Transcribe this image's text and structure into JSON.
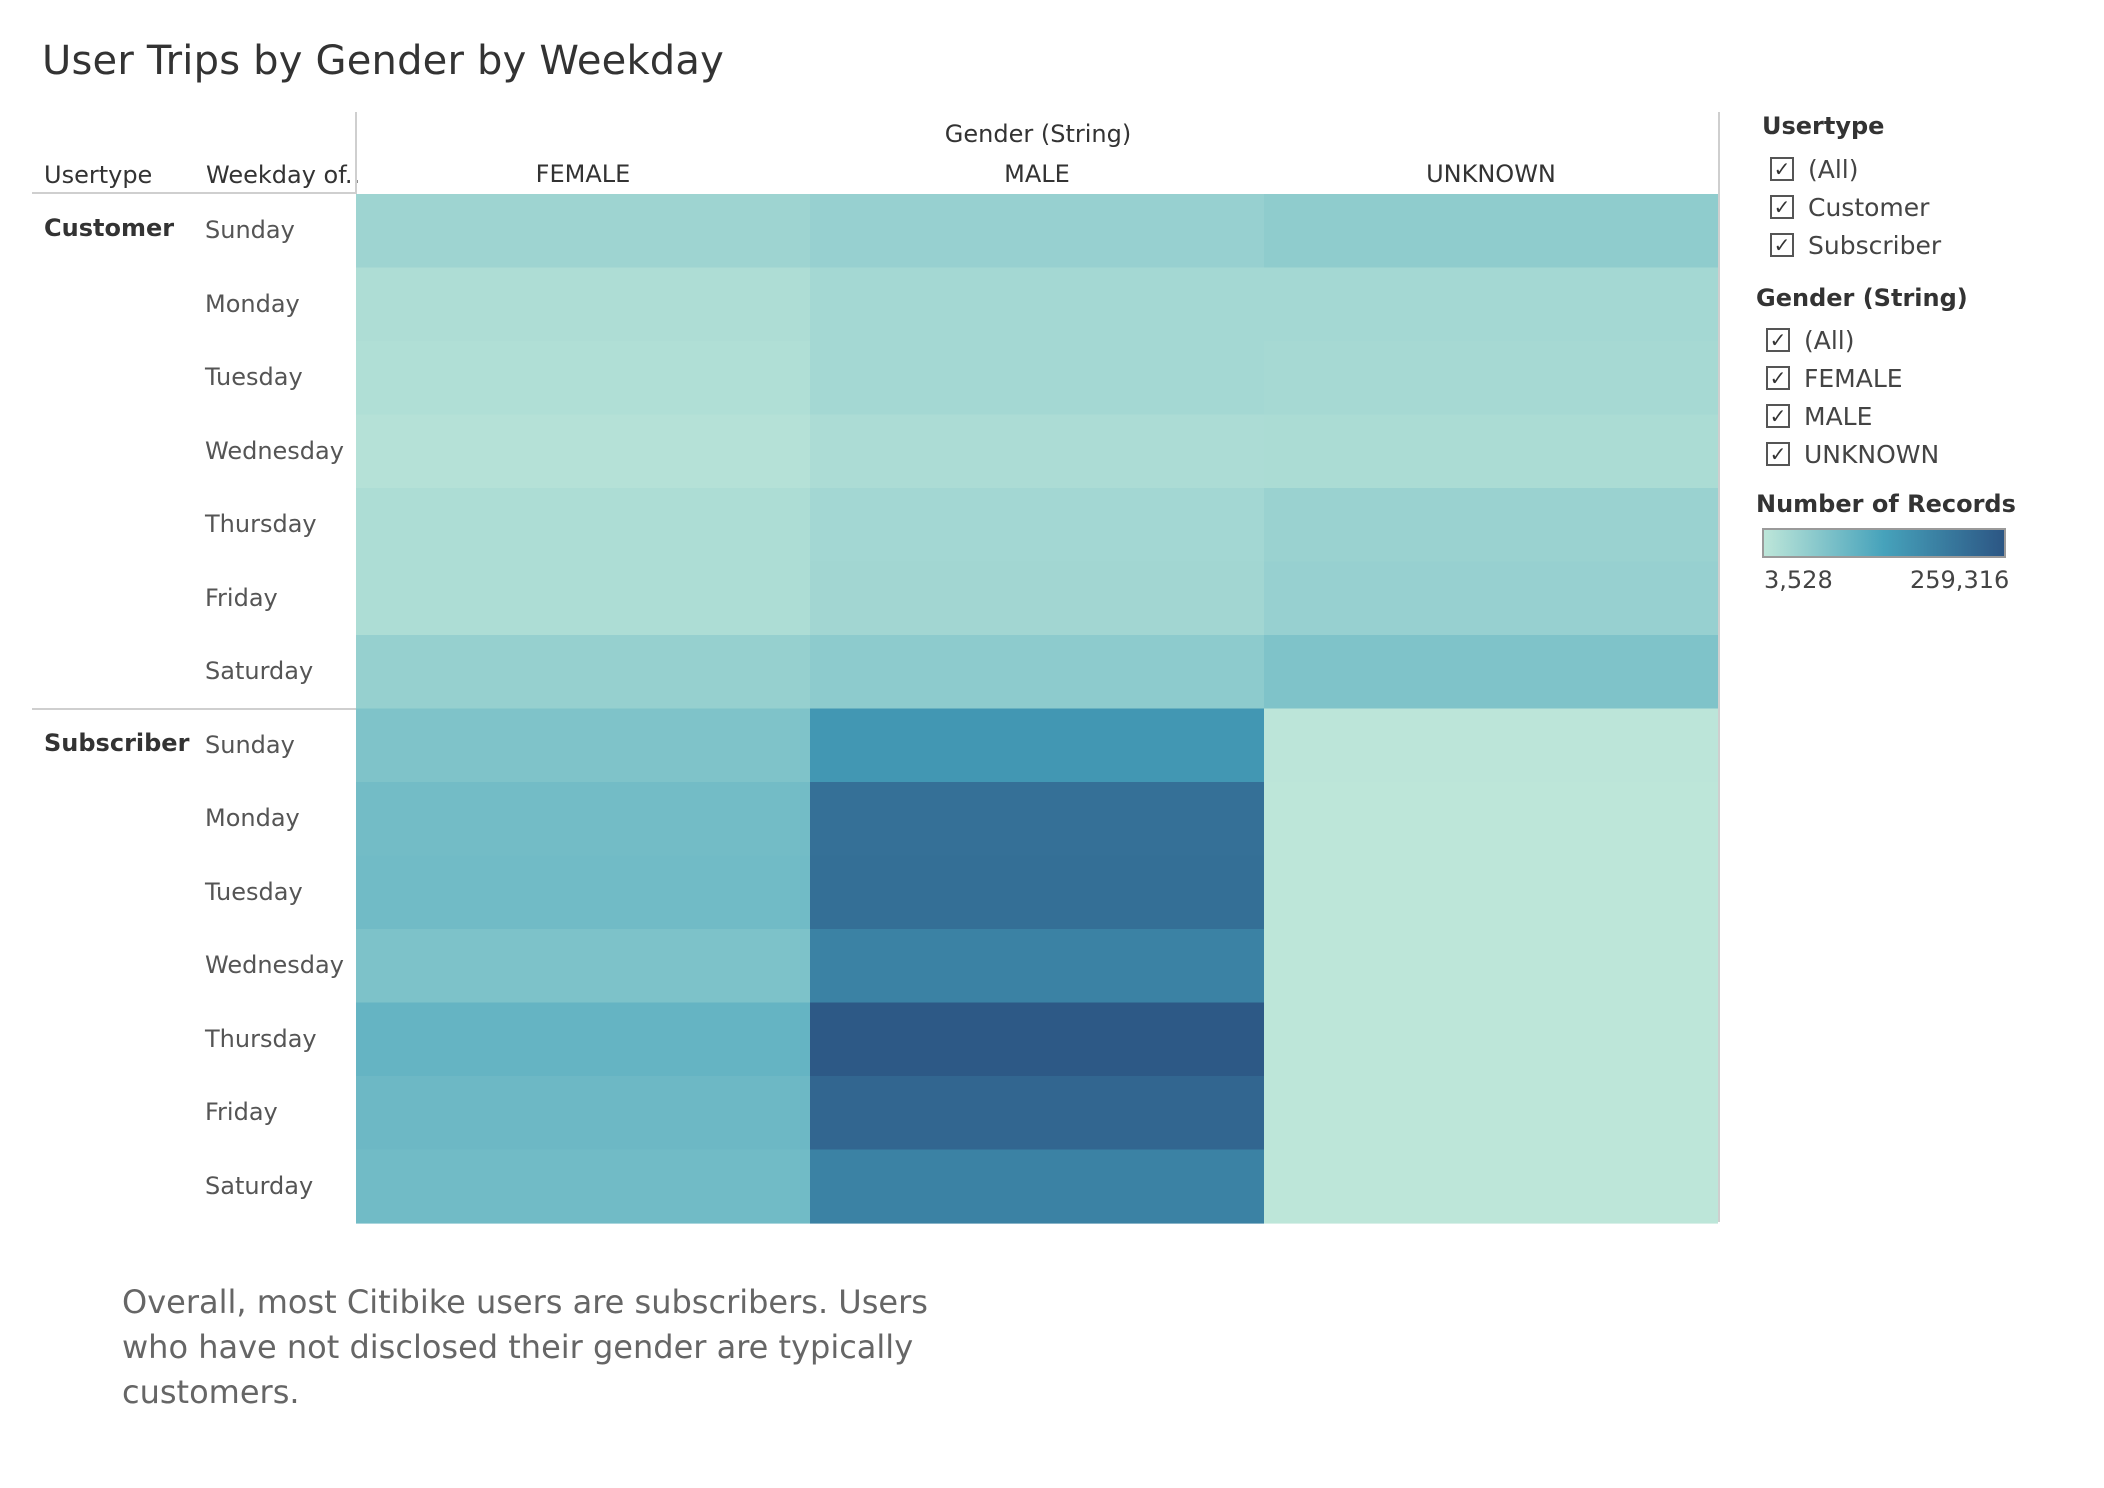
{
  "title": "User Trips by Gender by Weekday",
  "header": {
    "usertype_label": "Usertype",
    "weekday_label": "Weekday of..",
    "gender_label": "Gender (String)"
  },
  "chart_data": {
    "type": "heatmap",
    "title": "User Trips by Gender by Weekday",
    "columns_title": "Gender (String)",
    "columns": [
      "FEMALE",
      "MALE",
      "UNKNOWN"
    ],
    "row_groups": [
      "Customer",
      "Subscriber"
    ],
    "weekdays": [
      "Sunday",
      "Monday",
      "Tuesday",
      "Wednesday",
      "Thursday",
      "Friday",
      "Saturday"
    ],
    "measure": "Number of Records",
    "color_range": [
      3528,
      259316
    ],
    "color_scale": [
      "#bde6d9",
      "#46a2bb",
      "#2c5684"
    ],
    "values": [
      [
        [
          37000,
          44000,
          53000
        ],
        [
          20000,
          30000,
          30000
        ],
        [
          17000,
          30000,
          28000
        ],
        [
          12000,
          22000,
          23000
        ],
        [
          21000,
          31000,
          41000
        ],
        [
          21000,
          33000,
          44000
        ],
        [
          45000,
          55000,
          70000
        ]
      ],
      [
        [
          70000,
          150000,
          5000
        ],
        [
          83000,
          215000,
          4000
        ],
        [
          85000,
          218000,
          4000
        ],
        [
          72000,
          185000,
          4000
        ],
        [
          98000,
          255000,
          4000
        ],
        [
          90000,
          232000,
          4000
        ],
        [
          85000,
          185000,
          4000
        ]
      ]
    ]
  },
  "legend": {
    "usertype": {
      "title": "Usertype",
      "items": [
        {
          "label": "(All)",
          "checked": true
        },
        {
          "label": "Customer",
          "checked": true
        },
        {
          "label": "Subscriber",
          "checked": true
        }
      ]
    },
    "gender": {
      "title": "Gender (String)",
      "items": [
        {
          "label": "(All)",
          "checked": true
        },
        {
          "label": "FEMALE",
          "checked": true
        },
        {
          "label": "MALE",
          "checked": true
        },
        {
          "label": "UNKNOWN",
          "checked": true
        }
      ]
    },
    "color": {
      "title": "Number of Records",
      "min_label": "3,528",
      "max_label": "259,316"
    }
  },
  "note": "Overall, most Citibike users are subscribers. Users who have not disclosed their gender are typically customers."
}
